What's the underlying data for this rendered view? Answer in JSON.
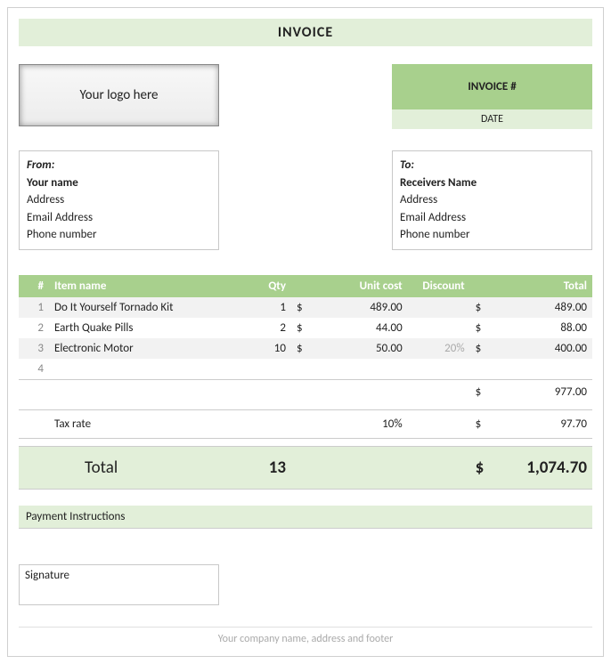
{
  "title": "INVOICE",
  "logo_placeholder": "Your logo here",
  "invoice_label": "INVOICE #",
  "date_label": "DATE",
  "from": {
    "heading": "From:",
    "name": "Your name",
    "address": "Address",
    "email": "Email Address",
    "phone": "Phone number"
  },
  "to": {
    "heading": "To:",
    "name": "Receivers Name",
    "address": "Address",
    "email": "Email Address",
    "phone": "Phone number"
  },
  "columns": {
    "num": "#",
    "item": "Item name",
    "qty": "Qty",
    "unit": "Unit cost",
    "discount": "Discount",
    "total": "Total"
  },
  "currency": "$",
  "items": [
    {
      "num": "1",
      "name": "Do It Yourself Tornado Kit",
      "qty": "1",
      "unit": "489.00",
      "discount": "",
      "total": "489.00"
    },
    {
      "num": "2",
      "name": "Earth Quake Pills",
      "qty": "2",
      "unit": "44.00",
      "discount": "",
      "total": "88.00"
    },
    {
      "num": "3",
      "name": "Electronic Motor",
      "qty": "10",
      "unit": "50.00",
      "discount": "20%",
      "total": "400.00"
    },
    {
      "num": "4",
      "name": "",
      "qty": "",
      "unit": "",
      "discount": "",
      "total": ""
    }
  ],
  "subtotal": "977.00",
  "tax_label": "Tax rate",
  "tax_rate": "10%",
  "tax_amount": "97.70",
  "grand_label": "Total",
  "grand_qty": "13",
  "grand_total": "1,074.70",
  "payment_label": "Payment Instructions",
  "signature_label": "Signature",
  "footer": "Your company name, address and footer",
  "colors": {
    "accent": "#a8d08d",
    "accent_light": "#e2efd9",
    "row_alt": "#f2f2f2",
    "border": "#c8c8c8",
    "muted": "#aaaaaa"
  }
}
